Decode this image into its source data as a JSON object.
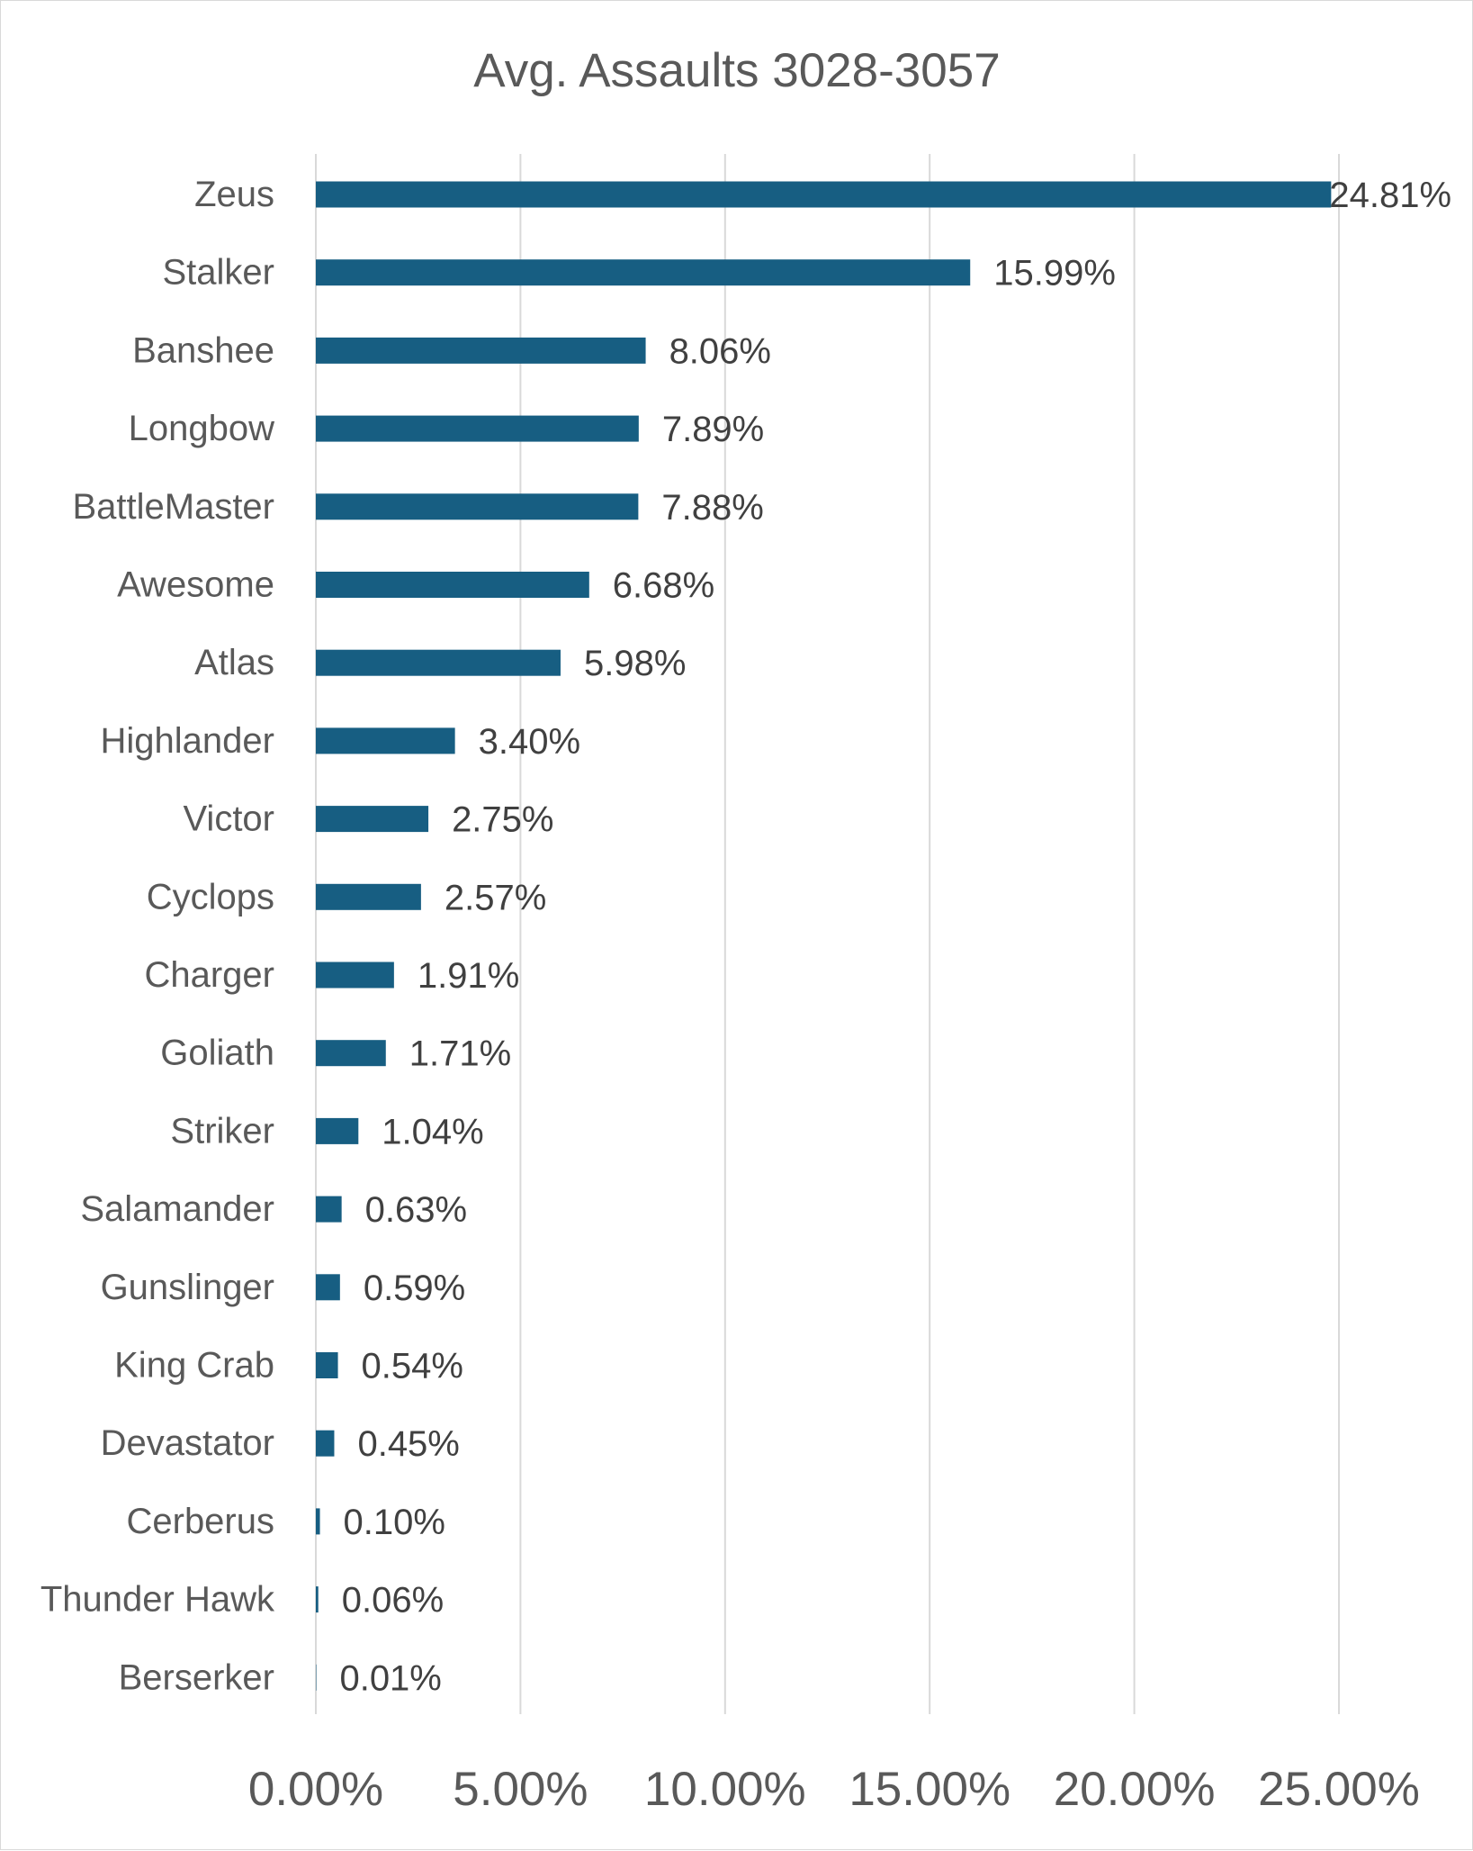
{
  "chart_data": {
    "type": "bar",
    "orientation": "horizontal",
    "title": "Avg. Assaults 3028-3057",
    "xlabel": "",
    "ylabel": "",
    "categories": [
      "Zeus",
      "Stalker",
      "Banshee",
      "Longbow",
      "BattleMaster",
      "Awesome",
      "Atlas",
      "Highlander",
      "Victor",
      "Cyclops",
      "Charger",
      "Goliath",
      "Striker",
      "Salamander",
      "Gunslinger",
      "King Crab",
      "Devastator",
      "Cerberus",
      "Thunder Hawk",
      "Berserker"
    ],
    "values": [
      24.81,
      15.99,
      8.06,
      7.89,
      7.88,
      6.68,
      5.98,
      3.4,
      2.75,
      2.57,
      1.91,
      1.71,
      1.04,
      0.63,
      0.59,
      0.54,
      0.45,
      0.1,
      0.06,
      0.01
    ],
    "data_labels": [
      "24.81%",
      "15.99%",
      "8.06%",
      "7.89%",
      "7.88%",
      "6.68%",
      "5.98%",
      "3.40%",
      "2.75%",
      "2.57%",
      "1.91%",
      "1.71%",
      "1.04%",
      "0.63%",
      "0.59%",
      "0.54%",
      "0.45%",
      "0.10%",
      "0.06%",
      "0.01%"
    ],
    "xlim": [
      0,
      25
    ],
    "xticks": [
      0,
      5,
      10,
      15,
      20,
      25
    ],
    "xtick_labels": [
      "0.00%",
      "5.00%",
      "10.00%",
      "15.00%",
      "20.00%",
      "25.00%"
    ],
    "grid": "vertical",
    "legend": "none",
    "bar_color": "#175e82",
    "grid_color": "#d9d9d9"
  }
}
